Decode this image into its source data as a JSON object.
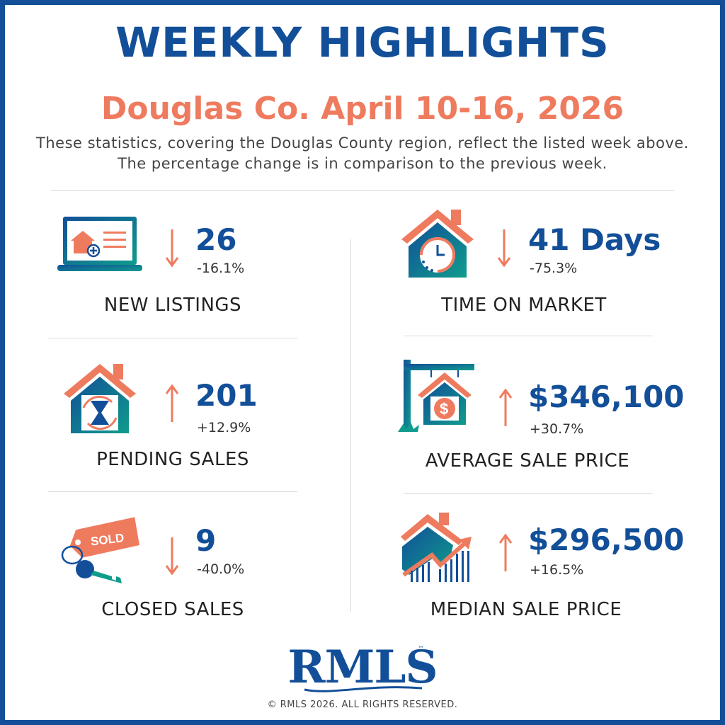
{
  "header": {
    "title": "WEEKLY HIGHLIGHTS",
    "subtitle": "Douglas Co. April 10-16, 2026",
    "description": "These statistics, covering the Douglas County region, reflect the listed week above. The percentage change is in comparison to the previous week."
  },
  "stats": [
    {
      "id": "new_listings",
      "label": "NEW LISTINGS",
      "value": "26",
      "change": "-16.1%",
      "direction": "down",
      "icon": "laptop-listing-icon"
    },
    {
      "id": "pending_sales",
      "label": "PENDING SALES",
      "value": "201",
      "change": "+12.9%",
      "direction": "up",
      "icon": "house-hourglass-icon"
    },
    {
      "id": "closed_sales",
      "label": "CLOSED SALES",
      "value": "9",
      "change": "-40.0%",
      "direction": "down",
      "icon": "sold-tag-key-icon"
    },
    {
      "id": "time_on_market",
      "label": "TIME ON MARKET",
      "value": "41 Days",
      "change": "-75.3%",
      "direction": "down",
      "icon": "house-clock-icon"
    },
    {
      "id": "average_sale_price",
      "label": "AVERAGE SALE PRICE",
      "value": "$346,100",
      "change": "+30.7%",
      "direction": "up",
      "icon": "house-dollar-sign-icon"
    },
    {
      "id": "median_sale_price",
      "label": "MEDIAN SALE PRICE",
      "value": "$296,500",
      "change": "+16.5%",
      "direction": "up",
      "icon": "house-rising-chart-icon"
    }
  ],
  "footer": {
    "logo": "RMLS",
    "trademark": "™",
    "copyright": "© RMLS 2026. ALL RIGHTS RESERVED."
  },
  "colors": {
    "primary_blue": "#124f98",
    "accent_coral": "#ef7b5f",
    "teal": "#0f9c8c"
  }
}
